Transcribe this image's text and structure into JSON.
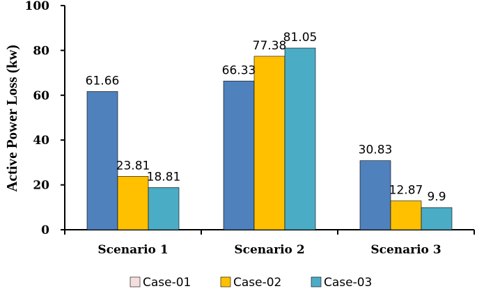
{
  "chart_data": {
    "type": "bar",
    "categories": [
      "Scenario 1",
      "Scenario 2",
      "Scenario 3"
    ],
    "series": [
      {
        "name": "Case-01",
        "color": "#4f81bd",
        "legend_color": "#f5dede",
        "values": [
          61.66,
          66.33,
          30.83
        ]
      },
      {
        "name": "Case-02",
        "color": "#ffc000",
        "legend_color": "#ffc000",
        "values": [
          23.81,
          77.38,
          12.87
        ]
      },
      {
        "name": "Case-03",
        "color": "#4bacc6",
        "legend_color": "#4bacc6",
        "values": [
          18.81,
          81.05,
          9.9
        ]
      }
    ],
    "data_labels": [
      [
        "61.66",
        "66.33",
        "30.83"
      ],
      [
        "23.81",
        "77.38",
        "12.87"
      ],
      [
        "18.81",
        "81.05",
        "9.9"
      ]
    ],
    "ylabel": "Active Power Loss (kw)",
    "xlabel": "",
    "ylim": [
      0,
      100
    ],
    "yticks": [
      0,
      20,
      40,
      60,
      80,
      100
    ],
    "ytick_labels": [
      "0",
      "20",
      "40",
      "60",
      "80",
      "100"
    ],
    "legend_position": "bottom",
    "grid": false
  }
}
